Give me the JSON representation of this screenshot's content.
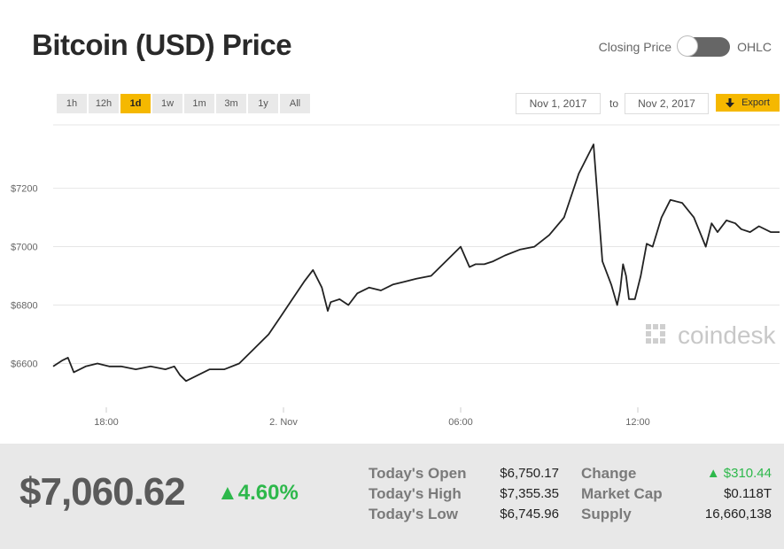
{
  "header": {
    "title": "Bitcoin (USD) Price",
    "toggle_left": "Closing Price",
    "toggle_right": "OHLC"
  },
  "ranges": [
    "1h",
    "12h",
    "1d",
    "1w",
    "1m",
    "3m",
    "1y",
    "All"
  ],
  "active_range": "1d",
  "date_from": "Nov 1, 2017",
  "date_to_label": "to",
  "date_to": "Nov 2, 2017",
  "export_label": "Export",
  "watermark": "coindesk",
  "colors": {
    "accent": "#f5b800",
    "line": "#222222",
    "up": "#2db84b"
  },
  "chart_data": {
    "type": "line",
    "title": "Bitcoin (USD) Price",
    "ylabel": "USD",
    "ylim": [
      6450,
      7420
    ],
    "y_ticks": [
      6600,
      6800,
      7000,
      7200
    ],
    "y_tick_labels": [
      "$6600",
      "$6800",
      "$7000",
      "$7200"
    ],
    "x_tick_labels": [
      "18:00",
      "2. Nov",
      "06:00",
      "12:00"
    ],
    "x_ticks": [
      3.5,
      9.5,
      15.5,
      21.5
    ],
    "xlim": [
      1.7,
      26.3
    ],
    "series": [
      {
        "name": "Closing Price",
        "x": [
          1.7,
          2.0,
          2.2,
          2.4,
          2.8,
          3.2,
          3.6,
          4.0,
          4.5,
          5.0,
          5.5,
          5.8,
          6.0,
          6.2,
          6.6,
          7.0,
          7.5,
          8.0,
          8.5,
          9.0,
          9.4,
          9.8,
          10.2,
          10.5,
          10.8,
          11.0,
          11.1,
          11.4,
          11.7,
          12.0,
          12.4,
          12.8,
          13.2,
          13.6,
          14.0,
          14.5,
          15.0,
          15.5,
          15.8,
          16.0,
          16.3,
          16.6,
          17.0,
          17.5,
          18.0,
          18.5,
          19.0,
          19.5,
          20.0,
          20.3,
          20.6,
          20.8,
          20.9,
          21.0,
          21.1,
          21.2,
          21.4,
          21.6,
          21.8,
          22.0,
          22.3,
          22.6,
          23.0,
          23.4,
          23.8,
          24.0,
          24.2,
          24.5,
          24.8,
          25.0,
          25.3,
          25.6,
          26.0,
          26.3
        ],
        "values": [
          6590,
          6610,
          6620,
          6570,
          6590,
          6600,
          6590,
          6590,
          6580,
          6590,
          6580,
          6590,
          6560,
          6540,
          6560,
          6580,
          6580,
          6600,
          6650,
          6700,
          6760,
          6820,
          6880,
          6920,
          6860,
          6780,
          6810,
          6820,
          6800,
          6840,
          6860,
          6850,
          6870,
          6880,
          6890,
          6900,
          6950,
          7000,
          6930,
          6940,
          6940,
          6950,
          6970,
          6990,
          7000,
          7040,
          7100,
          7250,
          7350,
          6950,
          6870,
          6800,
          6850,
          6940,
          6900,
          6820,
          6820,
          6900,
          7010,
          7000,
          7100,
          7160,
          7150,
          7100,
          7000,
          7080,
          7050,
          7090,
          7080,
          7060,
          7050,
          7070,
          7050,
          7050
        ]
      }
    ]
  },
  "stats": {
    "price": "$7,060.62",
    "change_pct": "4.60%",
    "today_open_label": "Today's Open",
    "today_open": "$6,750.17",
    "today_high_label": "Today's High",
    "today_high": "$7,355.35",
    "today_low_label": "Today's Low",
    "today_low": "$6,745.96",
    "change_label": "Change",
    "change": "$310.44",
    "market_cap_label": "Market Cap",
    "market_cap": "$0.118T",
    "supply_label": "Supply",
    "supply": "16,660,138"
  }
}
